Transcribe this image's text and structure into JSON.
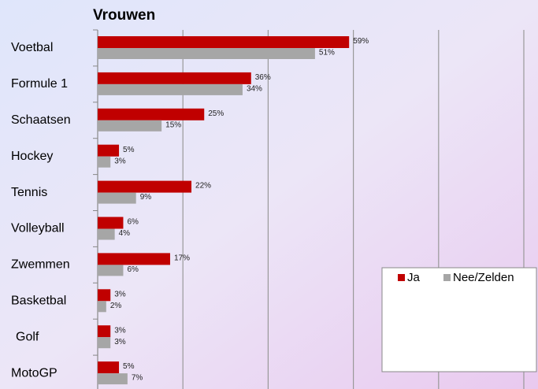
{
  "chart_data": {
    "type": "barh",
    "title": "Vrouwen",
    "categories": [
      "Voetbal",
      "Formule 1",
      "Schaatsen",
      "Hockey",
      "Tennis",
      "Volleyball",
      "Zwemmen",
      "Basketbal",
      "Golf",
      "MotoGP"
    ],
    "series": [
      {
        "name": "Ja",
        "color": "#c00000",
        "values": [
          59,
          36,
          25,
          5,
          22,
          6,
          17,
          3,
          3,
          5
        ],
        "value_labels": [
          "59%",
          "36%",
          "25%",
          "5%",
          "22%",
          "6%",
          "17%",
          "3%",
          "3%",
          "5%"
        ]
      },
      {
        "name": "Nee/Zelden",
        "color": "#a6a6a6",
        "values": [
          51,
          34,
          15,
          3,
          9,
          4,
          6,
          2,
          3,
          7
        ],
        "value_labels": [
          "51%",
          "34%",
          "15%",
          "3%",
          "9%",
          "4%",
          "6%",
          "2%",
          "3%",
          "7%"
        ]
      }
    ],
    "xlim": [
      0,
      100
    ],
    "xticks": [
      0,
      20,
      40,
      60,
      80,
      100
    ],
    "grid": true,
    "legend": "lower right"
  }
}
